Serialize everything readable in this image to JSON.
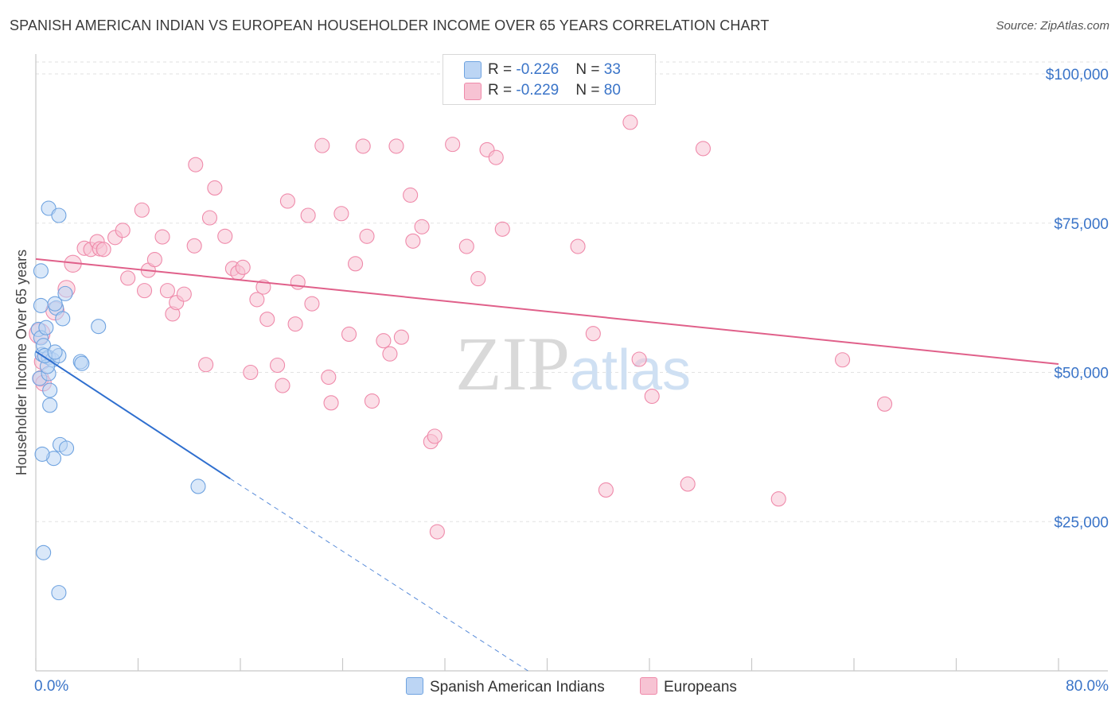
{
  "title": "SPANISH AMERICAN INDIAN VS EUROPEAN HOUSEHOLDER INCOME OVER 65 YEARS CORRELATION CHART",
  "source": "Source: ZipAtlas.com",
  "watermark": "ZIPatlas",
  "legend_top": [
    {
      "r_label": "R = ",
      "r_value": "-0.226",
      "n_label": "N = ",
      "n_value": "33",
      "color": "#a9c8f0"
    },
    {
      "r_label": "R = ",
      "r_value": "-0.229",
      "n_label": "N = ",
      "n_value": "80",
      "color": "#f7b3c8"
    }
  ],
  "chart_data": {
    "type": "scatter",
    "title": "SPANISH AMERICAN INDIAN VS EUROPEAN HOUSEHOLDER INCOME OVER 65 YEARS CORRELATION CHART",
    "xlabel": "",
    "ylabel": "Householder Income Over 65 years",
    "xlim": [
      0,
      80
    ],
    "ylim": [
      0,
      102000
    ],
    "x_tick_labels": [
      "0.0%",
      "80.0%"
    ],
    "y_ticks": [
      25000,
      50000,
      75000,
      100000
    ],
    "y_tick_labels": [
      "$25,000",
      "$50,000",
      "$75,000",
      "$100,000"
    ],
    "series": [
      {
        "name": "Spanish American Indians",
        "color": "#6fa3e0",
        "fill": "#bcd5f4",
        "line_color": "#2f6fcf",
        "trend": {
          "x0": 0,
          "y0": 53500,
          "x1": 15.2,
          "y1": 32200,
          "dash_to_x": 38.5,
          "dash_to_y": 0
        },
        "points": [
          [
            0.2,
            57200
          ],
          [
            0.4,
            55800
          ],
          [
            0.5,
            53000
          ],
          [
            0.3,
            49000
          ],
          [
            0.6,
            54500
          ],
          [
            0.8,
            57500
          ],
          [
            0.4,
            61200
          ],
          [
            0.4,
            67000
          ],
          [
            1.0,
            77500
          ],
          [
            1.8,
            76300
          ],
          [
            1.6,
            60800
          ],
          [
            1.5,
            61500
          ],
          [
            2.3,
            63200
          ],
          [
            2.1,
            59000
          ],
          [
            1.0,
            52500
          ],
          [
            1.3,
            52100
          ],
          [
            1.8,
            52800
          ],
          [
            1.0,
            49800
          ],
          [
            0.9,
            51000
          ],
          [
            1.1,
            47000
          ],
          [
            1.1,
            44500
          ],
          [
            3.5,
            51800
          ],
          [
            3.6,
            51500
          ],
          [
            4.9,
            57700
          ],
          [
            1.9,
            37900
          ],
          [
            2.4,
            37300
          ],
          [
            1.4,
            35600
          ],
          [
            0.5,
            36300
          ],
          [
            12.7,
            30900
          ],
          [
            0.6,
            19800
          ],
          [
            1.8,
            13100
          ],
          [
            0.7,
            52800
          ],
          [
            1.5,
            53400
          ]
        ],
        "sizes": [
          11,
          11,
          11,
          11,
          11,
          11,
          11,
          11,
          11,
          11,
          11,
          11,
          11,
          11,
          11,
          11,
          11,
          11,
          11,
          11,
          11,
          11,
          11,
          11,
          11,
          11,
          11,
          11,
          11,
          11,
          11,
          11,
          11
        ]
      },
      {
        "name": "Europeans",
        "color": "#ef8aaa",
        "fill": "#f7c3d3",
        "line_color": "#e0608a",
        "trend": {
          "x0": 0,
          "y0": 69000,
          "x1": 80,
          "y1": 51400
        },
        "points": [
          [
            0.3,
            56500
          ],
          [
            0.5,
            51800
          ],
          [
            0.4,
            49000
          ],
          [
            0.6,
            48200
          ],
          [
            1.5,
            60300
          ],
          [
            2.4,
            64000
          ],
          [
            2.9,
            68200
          ],
          [
            3.8,
            70800
          ],
          [
            4.3,
            70600
          ],
          [
            4.8,
            71900
          ],
          [
            5.0,
            70700
          ],
          [
            5.3,
            70600
          ],
          [
            6.2,
            72600
          ],
          [
            6.8,
            73800
          ],
          [
            7.2,
            65800
          ],
          [
            8.3,
            77200
          ],
          [
            8.5,
            63700
          ],
          [
            8.8,
            67100
          ],
          [
            9.3,
            68900
          ],
          [
            9.9,
            72700
          ],
          [
            10.3,
            63700
          ],
          [
            10.7,
            59800
          ],
          [
            11.0,
            61700
          ],
          [
            11.6,
            63100
          ],
          [
            12.4,
            71200
          ],
          [
            12.5,
            84800
          ],
          [
            13.3,
            51300
          ],
          [
            13.6,
            75900
          ],
          [
            14.0,
            80900
          ],
          [
            14.8,
            72800
          ],
          [
            15.4,
            67400
          ],
          [
            15.8,
            66700
          ],
          [
            16.2,
            67600
          ],
          [
            16.8,
            50000
          ],
          [
            17.3,
            62200
          ],
          [
            17.8,
            64300
          ],
          [
            18.1,
            58900
          ],
          [
            18.9,
            51200
          ],
          [
            19.3,
            47800
          ],
          [
            19.7,
            78700
          ],
          [
            20.3,
            58100
          ],
          [
            20.5,
            65100
          ],
          [
            21.3,
            76300
          ],
          [
            21.6,
            61500
          ],
          [
            22.4,
            88000
          ],
          [
            22.9,
            49200
          ],
          [
            23.1,
            44900
          ],
          [
            23.9,
            76600
          ],
          [
            24.5,
            56400
          ],
          [
            25.0,
            68200
          ],
          [
            25.6,
            87900
          ],
          [
            25.9,
            72800
          ],
          [
            26.3,
            45200
          ],
          [
            27.2,
            55300
          ],
          [
            27.7,
            53100
          ],
          [
            28.2,
            87900
          ],
          [
            28.6,
            55900
          ],
          [
            29.3,
            79700
          ],
          [
            29.5,
            72000
          ],
          [
            30.2,
            74400
          ],
          [
            30.9,
            38400
          ],
          [
            31.2,
            39300
          ],
          [
            31.4,
            23300
          ],
          [
            32.6,
            88200
          ],
          [
            33.7,
            71100
          ],
          [
            34.6,
            65700
          ],
          [
            35.3,
            87300
          ],
          [
            36.0,
            86000
          ],
          [
            36.5,
            74000
          ],
          [
            42.4,
            71100
          ],
          [
            43.6,
            56500
          ],
          [
            44.6,
            30300
          ],
          [
            47.2,
            52200
          ],
          [
            48.2,
            46000
          ],
          [
            51.0,
            31300
          ],
          [
            52.2,
            87500
          ],
          [
            58.1,
            28800
          ],
          [
            63.1,
            52100
          ],
          [
            66.4,
            44700
          ],
          [
            46.5,
            91900
          ]
        ],
        "sizes": [
          16,
          12,
          12,
          12,
          14,
          13,
          13,
          11,
          11,
          11,
          11,
          11,
          11,
          11,
          11,
          11,
          11,
          11,
          11,
          11,
          11,
          11,
          11,
          11,
          11,
          11,
          11,
          11,
          11,
          11,
          11,
          11,
          11,
          11,
          11,
          11,
          11,
          11,
          11,
          11,
          11,
          11,
          11,
          11,
          11,
          11,
          11,
          11,
          11,
          11,
          11,
          11,
          11,
          11,
          11,
          11,
          11,
          11,
          11,
          11,
          11,
          11,
          11,
          11,
          11,
          11,
          11,
          11,
          11,
          11,
          11,
          11,
          11,
          11,
          11,
          11,
          11,
          11,
          11,
          11
        ]
      }
    ]
  }
}
